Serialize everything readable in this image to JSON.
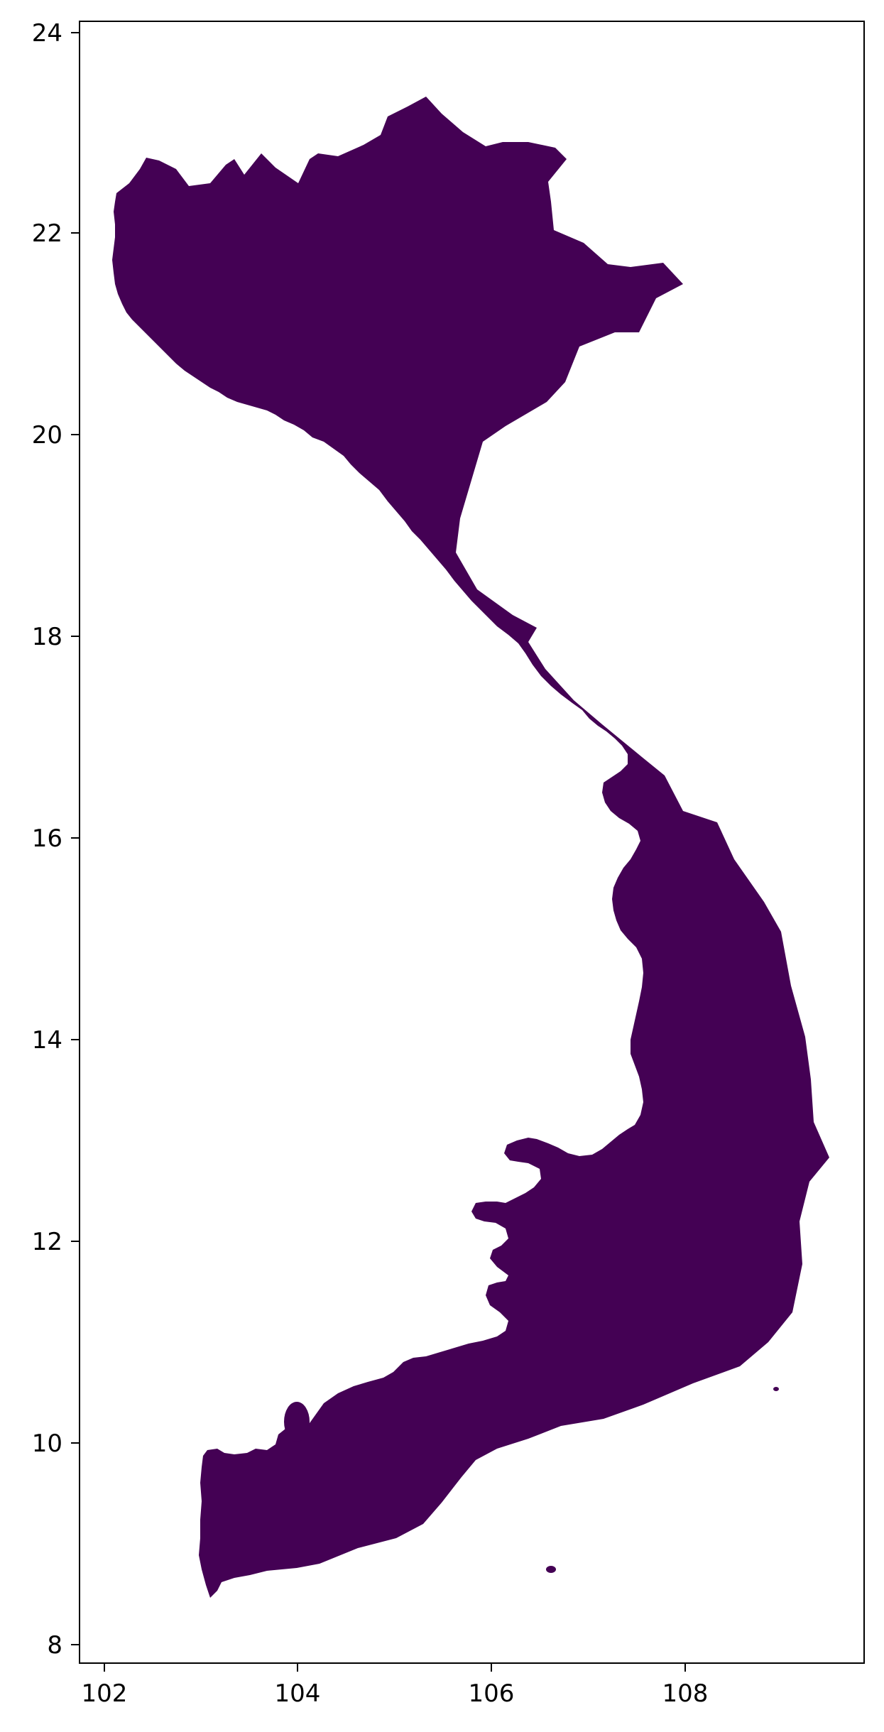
{
  "map": {
    "region_color": "#440154",
    "background_color": "#ffffff",
    "axis_color": "#000000",
    "x_ticks": [
      "102",
      "104",
      "106",
      "108"
    ],
    "y_ticks": [
      "8",
      "10",
      "12",
      "14",
      "16",
      "18",
      "20",
      "22",
      "24"
    ],
    "x_range": [
      101.75,
      109.85
    ],
    "y_range": [
      7.8,
      24.15
    ]
  }
}
